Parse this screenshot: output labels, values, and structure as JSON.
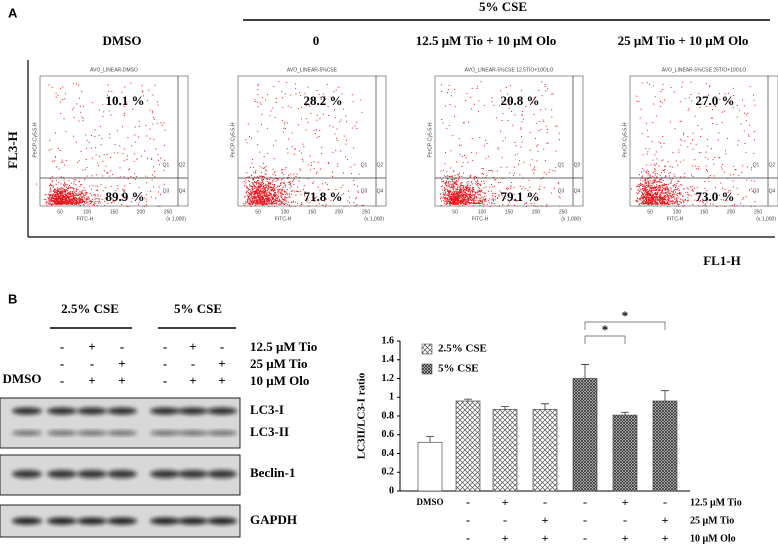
{
  "panel_a": {
    "label": "A",
    "group_header": "5% CSE",
    "column_labels": [
      "DMSO",
      "0",
      "12.5 μM Tio + 10 μM Olo",
      "25 μM Tio + 10 μM Olo"
    ],
    "y_axis_label": "FL3-H",
    "x_axis_label": "FL1-H",
    "plots": [
      {
        "title": "AVO_LINEAR-DMSO",
        "upper_percent": "10.1 %",
        "lower_percent": "89.9 %"
      },
      {
        "title": "AVO_LINEAR-5%CSE",
        "upper_percent": "28.2 %",
        "lower_percent": "71.8 %"
      },
      {
        "title": "AVO_LINEAR-5%CSE 12.5TIO+10OLO",
        "upper_percent": "20.8 %",
        "lower_percent": "79.1 %"
      },
      {
        "title": "AVO_LINEAR-5%CSE 25TIO+10OLO",
        "upper_percent": "27.0 %",
        "lower_percent": "73.0 %"
      }
    ],
    "plot_x_label": "FITC-H",
    "plot_y_label": "PerCP-Cy5-5-H",
    "plot_x_ticks": [
      "50",
      "100",
      "150",
      "200",
      "250"
    ],
    "axis_multiplier": "(x 1,000)",
    "quadrants": [
      "Q1",
      "Q2",
      "Q3",
      "Q4"
    ]
  },
  "panel_b": {
    "label": "B",
    "groups": [
      "2.5% CSE",
      "5% CSE"
    ],
    "vehicle_label": "DMSO",
    "treatments": [
      {
        "name": "12.5 μM Tio",
        "signs": [
          "-",
          "+",
          "-",
          "-",
          "+",
          "-"
        ]
      },
      {
        "name": "25 μM Tio",
        "signs": [
          "-",
          "-",
          "+",
          "-",
          "-",
          "+"
        ]
      },
      {
        "name": "10 μM Olo",
        "signs": [
          "-",
          "+",
          "+",
          "-",
          "+",
          "+"
        ]
      }
    ],
    "bands": [
      "LC3-I",
      "LC3-II",
      "Beclin-1",
      "GAPDH"
    ]
  },
  "chart_data": {
    "type": "bar",
    "y_label": "LC3II/LC3-I ratio",
    "categories": [
      "DMSO",
      null,
      null,
      null,
      null,
      null,
      null
    ],
    "x_rows": [
      {
        "name": "12.5 μM Tio",
        "signs": [
          null,
          "-",
          "+",
          "-",
          "-",
          "+",
          "-"
        ]
      },
      {
        "name": "25 μM Tio",
        "signs": [
          null,
          "-",
          "-",
          "+",
          "-",
          "-",
          "+"
        ]
      },
      {
        "name": "10 μM Olo",
        "signs": [
          null,
          "-",
          "+",
          "+",
          "-",
          "+",
          "+"
        ]
      }
    ],
    "series": [
      {
        "color": "#ffffff",
        "values": [
          0.52,
          null,
          null,
          null,
          null,
          null,
          null
        ],
        "errors": [
          0.06,
          null,
          null,
          null,
          null,
          null,
          null
        ]
      },
      {
        "name": "2.5% CSE",
        "pattern": "crosshatch",
        "values": [
          null,
          0.96,
          0.87,
          0.87,
          null,
          null,
          null
        ],
        "errors": [
          null,
          0.02,
          0.03,
          0.06,
          null,
          null,
          null
        ]
      },
      {
        "name": "5% CSE",
        "pattern": "grid",
        "values": [
          null,
          null,
          null,
          null,
          1.2,
          0.81,
          0.96
        ],
        "errors": [
          null,
          null,
          null,
          null,
          0.15,
          0.03,
          0.11
        ]
      }
    ],
    "ylim": [
      0,
      1.6
    ],
    "yticks": [
      0,
      0.2,
      0.4,
      0.6,
      0.8,
      1,
      1.2,
      1.4,
      1.6
    ],
    "annotations": [
      "*",
      "*"
    ]
  }
}
